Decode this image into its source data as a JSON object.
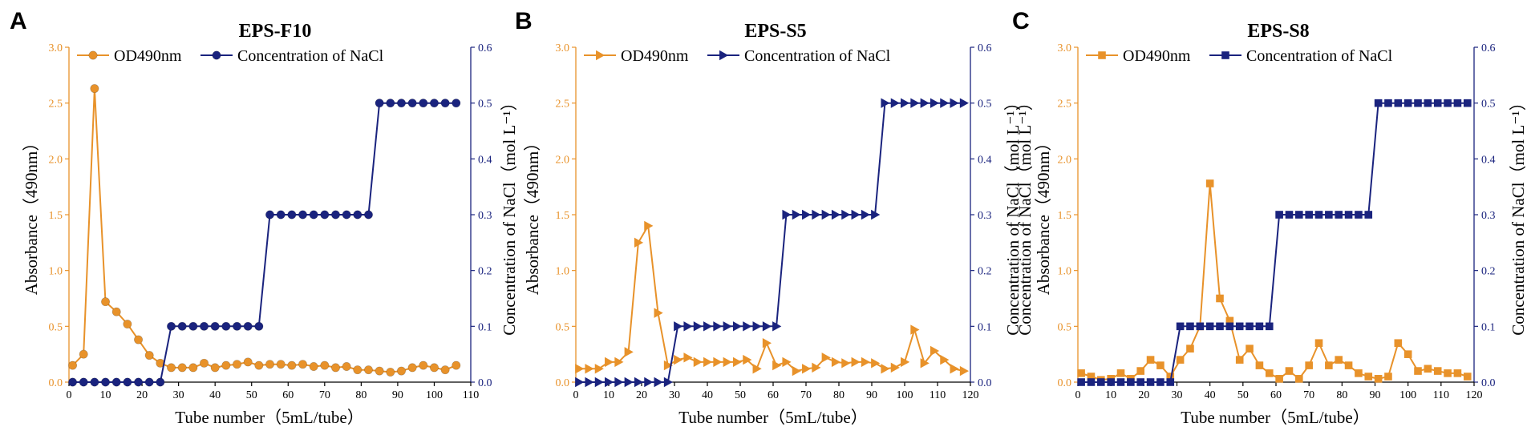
{
  "colors": {
    "od": "#e8922a",
    "nacl": "#1a237e",
    "axis": "#000000"
  },
  "chart_data": [
    {
      "panel": "A",
      "type": "line",
      "title": "EPS-F10",
      "xlabel": "Tube number（5mL/tube）",
      "ylabel_left": "Absorbance（490nm）",
      "ylabel_right": "Concentration of NaCl（mol L⁻¹）",
      "xlim": [
        0,
        110
      ],
      "ylim_left": [
        0,
        3.0
      ],
      "ylim_right": [
        0,
        0.6
      ],
      "xticks": [
        "0",
        "10",
        "20",
        "30",
        "40",
        "50",
        "60",
        "70",
        "80",
        "90",
        "100",
        "110"
      ],
      "yticks_left": [
        "0.0",
        "0.5",
        "1.0",
        "1.5",
        "2.0",
        "2.5",
        "3.0"
      ],
      "yticks_right": [
        "0.0",
        "0.1",
        "0.2",
        "0.3",
        "0.4",
        "0.5",
        "0.6"
      ],
      "marker": "circle",
      "legend": [
        "OD490nm",
        "Concentration of NaCl"
      ],
      "series": [
        {
          "name": "OD490nm",
          "axis": "left",
          "x": [
            1,
            4,
            7,
            10,
            13,
            16,
            19,
            22,
            25,
            28,
            31,
            34,
            37,
            40,
            43,
            46,
            49,
            52,
            55,
            58,
            61,
            64,
            67,
            70,
            73,
            76,
            79,
            82,
            85,
            88,
            91,
            94,
            97,
            100,
            103,
            106
          ],
          "y": [
            0.15,
            0.25,
            2.63,
            0.72,
            0.63,
            0.52,
            0.38,
            0.24,
            0.17,
            0.13,
            0.13,
            0.13,
            0.17,
            0.13,
            0.15,
            0.16,
            0.18,
            0.15,
            0.16,
            0.16,
            0.15,
            0.16,
            0.14,
            0.15,
            0.13,
            0.14,
            0.11,
            0.11,
            0.1,
            0.09,
            0.1,
            0.13,
            0.15,
            0.13,
            0.11,
            0.15
          ]
        },
        {
          "name": "Concentration of NaCl",
          "axis": "right",
          "x": [
            1,
            4,
            7,
            10,
            13,
            16,
            19,
            22,
            25,
            28,
            31,
            34,
            37,
            40,
            43,
            46,
            49,
            52,
            55,
            58,
            61,
            64,
            67,
            70,
            73,
            76,
            79,
            82,
            85,
            88,
            91,
            94,
            97,
            100,
            103,
            106
          ],
          "y": [
            0,
            0,
            0,
            0,
            0,
            0,
            0,
            0,
            0,
            0.1,
            0.1,
            0.1,
            0.1,
            0.1,
            0.1,
            0.1,
            0.1,
            0.1,
            0.3,
            0.3,
            0.3,
            0.3,
            0.3,
            0.3,
            0.3,
            0.3,
            0.3,
            0.3,
            0.5,
            0.5,
            0.5,
            0.5,
            0.5,
            0.5,
            0.5,
            0.5
          ]
        }
      ]
    },
    {
      "panel": "B",
      "type": "line",
      "title": "EPS-S5",
      "xlabel": "Tube number（5mL/tube）",
      "ylabel_left": "Absorbance（490nm）",
      "ylabel_right": "Concentration of NaCl（mol L⁻¹）",
      "xlim": [
        0,
        120
      ],
      "ylim_left": [
        0,
        3.0
      ],
      "ylim_right": [
        0,
        0.6
      ],
      "xticks": [
        "0",
        "10",
        "20",
        "30",
        "40",
        "50",
        "60",
        "70",
        "80",
        "90",
        "100",
        "110",
        "120"
      ],
      "yticks_left": [
        "0.0",
        "0.5",
        "1.0",
        "1.5",
        "2.0",
        "2.5",
        "3.0"
      ],
      "yticks_right": [
        "0.0",
        "0.1",
        "0.2",
        "0.3",
        "0.4",
        "0.5",
        "0.6"
      ],
      "marker": "triangle",
      "legend": [
        "OD490nm",
        "Concentration of NaCl"
      ],
      "series": [
        {
          "name": "OD490nm",
          "axis": "left",
          "x": [
            1,
            4,
            7,
            10,
            13,
            16,
            19,
            22,
            25,
            28,
            31,
            34,
            37,
            40,
            43,
            46,
            49,
            52,
            55,
            58,
            61,
            64,
            67,
            70,
            73,
            76,
            79,
            82,
            85,
            88,
            91,
            94,
            97,
            100,
            103,
            106,
            109,
            112,
            115,
            118
          ],
          "y": [
            0.12,
            0.12,
            0.12,
            0.18,
            0.18,
            0.27,
            1.25,
            1.4,
            0.62,
            0.15,
            0.2,
            0.22,
            0.18,
            0.18,
            0.18,
            0.18,
            0.18,
            0.2,
            0.12,
            0.35,
            0.15,
            0.18,
            0.1,
            0.12,
            0.13,
            0.22,
            0.18,
            0.17,
            0.18,
            0.18,
            0.17,
            0.12,
            0.13,
            0.18,
            0.47,
            0.17,
            0.28,
            0.2,
            0.12,
            0.1
          ]
        },
        {
          "name": "Concentration of NaCl",
          "axis": "right",
          "x": [
            1,
            4,
            7,
            10,
            13,
            16,
            19,
            22,
            25,
            28,
            31,
            34,
            37,
            40,
            43,
            46,
            49,
            52,
            55,
            58,
            61,
            64,
            67,
            70,
            73,
            76,
            79,
            82,
            85,
            88,
            91,
            94,
            97,
            100,
            103,
            106,
            109,
            112,
            115,
            118
          ],
          "y": [
            0,
            0,
            0,
            0,
            0,
            0,
            0,
            0,
            0,
            0,
            0.1,
            0.1,
            0.1,
            0.1,
            0.1,
            0.1,
            0.1,
            0.1,
            0.1,
            0.1,
            0.1,
            0.3,
            0.3,
            0.3,
            0.3,
            0.3,
            0.3,
            0.3,
            0.3,
            0.3,
            0.3,
            0.5,
            0.5,
            0.5,
            0.5,
            0.5,
            0.5,
            0.5,
            0.5,
            0.5
          ]
        }
      ]
    },
    {
      "panel": "C",
      "type": "line",
      "title": "EPS-S8",
      "xlabel": "Tube number（5mL/tube）",
      "ylabel_left": "Concentration of NaCl（mol L⁻¹）\nAbsorbance（490nm）",
      "ylabel_right": "Concentration of NaCl（mol L⁻¹）",
      "xlim": [
        0,
        120
      ],
      "ylim_left": [
        0,
        3.0
      ],
      "ylim_right": [
        0,
        0.6
      ],
      "xticks": [
        "0",
        "10",
        "20",
        "30",
        "40",
        "50",
        "60",
        "70",
        "80",
        "90",
        "100",
        "110",
        "120"
      ],
      "yticks_left": [
        "0.0",
        "0.5",
        "1.0",
        "1.5",
        "2.0",
        "2.5",
        "3.0"
      ],
      "yticks_right": [
        "0.0",
        "0.1",
        "0.2",
        "0.3",
        "0.4",
        "0.5",
        "0.6"
      ],
      "marker": "square",
      "legend": [
        "OD490nm",
        "Concentration of NaCl"
      ],
      "series": [
        {
          "name": "OD490nm",
          "axis": "left",
          "x": [
            1,
            4,
            7,
            10,
            13,
            16,
            19,
            22,
            25,
            28,
            31,
            34,
            37,
            40,
            43,
            46,
            49,
            52,
            55,
            58,
            61,
            64,
            67,
            70,
            73,
            76,
            79,
            82,
            85,
            88,
            91,
            94,
            97,
            100,
            103,
            106,
            109,
            112,
            115,
            118
          ],
          "y": [
            0.08,
            0.05,
            0.02,
            0.03,
            0.08,
            0.03,
            0.1,
            0.2,
            0.15,
            0.05,
            0.2,
            0.3,
            0.5,
            1.78,
            0.75,
            0.55,
            0.2,
            0.3,
            0.15,
            0.08,
            0.03,
            0.1,
            0.03,
            0.15,
            0.35,
            0.15,
            0.2,
            0.15,
            0.08,
            0.05,
            0.03,
            0.05,
            0.35,
            0.25,
            0.1,
            0.12,
            0.1,
            0.08,
            0.08,
            0.05
          ]
        },
        {
          "name": "Concentration of NaCl",
          "axis": "right",
          "x": [
            1,
            4,
            7,
            10,
            13,
            16,
            19,
            22,
            25,
            28,
            31,
            34,
            37,
            40,
            43,
            46,
            49,
            52,
            55,
            58,
            61,
            64,
            67,
            70,
            73,
            76,
            79,
            82,
            85,
            88,
            91,
            94,
            97,
            100,
            103,
            106,
            109,
            112,
            115,
            118
          ],
          "y": [
            0,
            0,
            0,
            0,
            0,
            0,
            0,
            0,
            0,
            0,
            0.1,
            0.1,
            0.1,
            0.1,
            0.1,
            0.1,
            0.1,
            0.1,
            0.1,
            0.1,
            0.3,
            0.3,
            0.3,
            0.3,
            0.3,
            0.3,
            0.3,
            0.3,
            0.3,
            0.3,
            0.5,
            0.5,
            0.5,
            0.5,
            0.5,
            0.5,
            0.5,
            0.5,
            0.5,
            0.5
          ]
        }
      ]
    }
  ]
}
